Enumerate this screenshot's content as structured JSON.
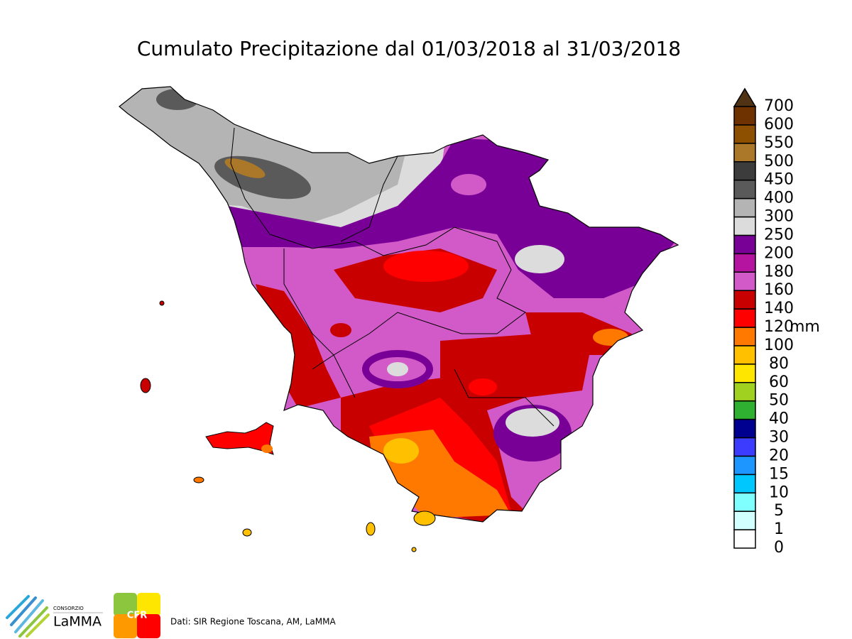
{
  "title": "Cumulato Precipitazione dal 01/03/2018 al 31/03/2018",
  "colorbar": {
    "unit": "mm",
    "levels": [
      0,
      1,
      5,
      10,
      15,
      20,
      30,
      40,
      50,
      60,
      80,
      100,
      120,
      140,
      160,
      180,
      200,
      250,
      300,
      400,
      450,
      500,
      550,
      600,
      700
    ],
    "colors": [
      "#ffffff",
      "#d2ffff",
      "#80ffff",
      "#00c8ff",
      "#1e96ff",
      "#3c3cff",
      "#000090",
      "#30b030",
      "#a0d020",
      "#ffe600",
      "#ffc000",
      "#ff7800",
      "#ff0000",
      "#c80000",
      "#d25ac8",
      "#b414a0",
      "#780096",
      "#dcdcdc",
      "#b4b4b4",
      "#5a5a5a",
      "#3c3c3c",
      "#aa7828",
      "#8c5000",
      "#6e3200"
    ],
    "extend_color": "#503214"
  },
  "footer": {
    "lamma_top": "CONSORZIO",
    "lamma_name": "LaMMA",
    "cfr": "CFR",
    "credits": "Dati: SIR Regione Toscana, AM, LaMMA"
  }
}
